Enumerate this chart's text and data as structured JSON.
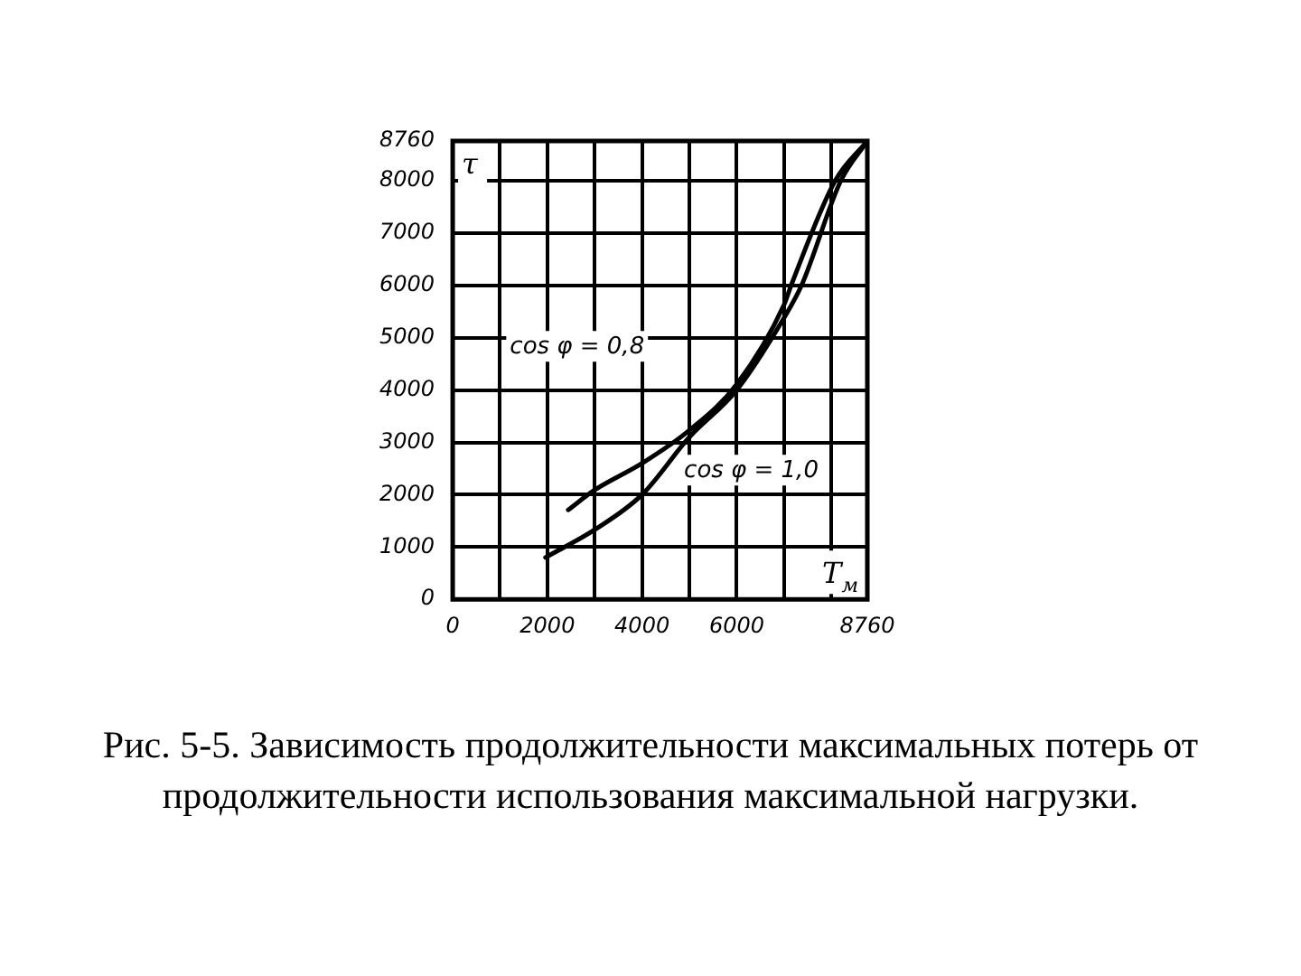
{
  "chart_data": {
    "type": "line",
    "xlabel": "T$_{м}$",
    "ylabel": "τ",
    "xlim": [
      0,
      8760
    ],
    "ylim": [
      0,
      8760
    ],
    "xticks": [
      0,
      {
        "value": 1000,
        "label": null
      },
      2000,
      {
        "value": 3000,
        "label": null
      },
      4000,
      {
        "value": 5000,
        "label": null
      },
      6000,
      {
        "value": 7000,
        "label": null
      },
      {
        "value": 8000,
        "label": null
      },
      8760
    ],
    "yticks": [
      0,
      1000,
      2000,
      3000,
      4000,
      5000,
      6000,
      7000,
      8000,
      8760
    ],
    "grid": true,
    "legend": false,
    "marker": "none",
    "line_style": "solid",
    "series": [
      {
        "color": "#000000",
        "x": [
          2440,
          3000,
          4000,
          5000,
          6000,
          7000,
          7150,
          8080,
          8760
        ],
        "values": [
          1710,
          2090,
          2600,
          3230,
          4110,
          5630,
          6000,
          8000,
          8760
        ]
      },
      {
        "color": "#000000",
        "x": [
          1960,
          3000,
          4000,
          5000,
          6000,
          7000,
          7370,
          8200,
          8760
        ],
        "values": [
          800,
          1330,
          2000,
          3100,
          4000,
          5380,
          6000,
          8000,
          8760
        ]
      }
    ],
    "annotations": [
      "cos φ = 0,8",
      "cos φ = 1,0",
      "Рис. 5-5. Зависимость продолжительности максимальных потерь от продолжительности использования максимальной нагрузки."
    ]
  }
}
